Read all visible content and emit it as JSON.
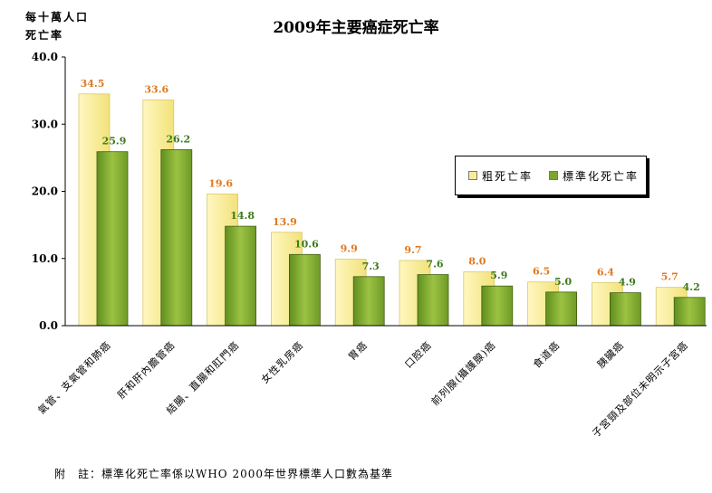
{
  "ylabel": [
    "每十萬人口",
    "死亡率"
  ],
  "note": "附　註：標準化死亡率係以WHO 2000年世界標準人口數為基準",
  "colors": {
    "crude": "#f7ec98",
    "crude_label": "#e0781e",
    "std": "#7ea531",
    "std_label": "#3d7a1e",
    "axis": "#000000"
  },
  "chart_data": {
    "type": "bar",
    "title": "2009年主要癌症死亡率",
    "ylabel": "每十萬人口 死亡率",
    "ylim": [
      0,
      40
    ],
    "yticks": [
      "0.0",
      "10.0",
      "20.0",
      "30.0",
      "40.0"
    ],
    "legend_position": "right",
    "categories": [
      "氣管、支氣管和肺癌",
      "肝和肝內膽管癌",
      "結腸、直腸和肛門癌",
      "女性乳房癌",
      "胃癌",
      "口腔癌",
      "前列腺(攝護腺)癌",
      "食道癌",
      "胰臟癌",
      "子宮頸及部位未明示子宮癌"
    ],
    "series": [
      {
        "name": "粗死亡率",
        "values": [
          34.5,
          33.6,
          19.6,
          13.9,
          9.9,
          9.7,
          8.0,
          6.5,
          6.4,
          5.7
        ]
      },
      {
        "name": "標準化死亡率",
        "values": [
          25.9,
          26.2,
          14.8,
          10.6,
          7.3,
          7.6,
          5.9,
          5.0,
          4.9,
          4.2
        ]
      }
    ]
  }
}
